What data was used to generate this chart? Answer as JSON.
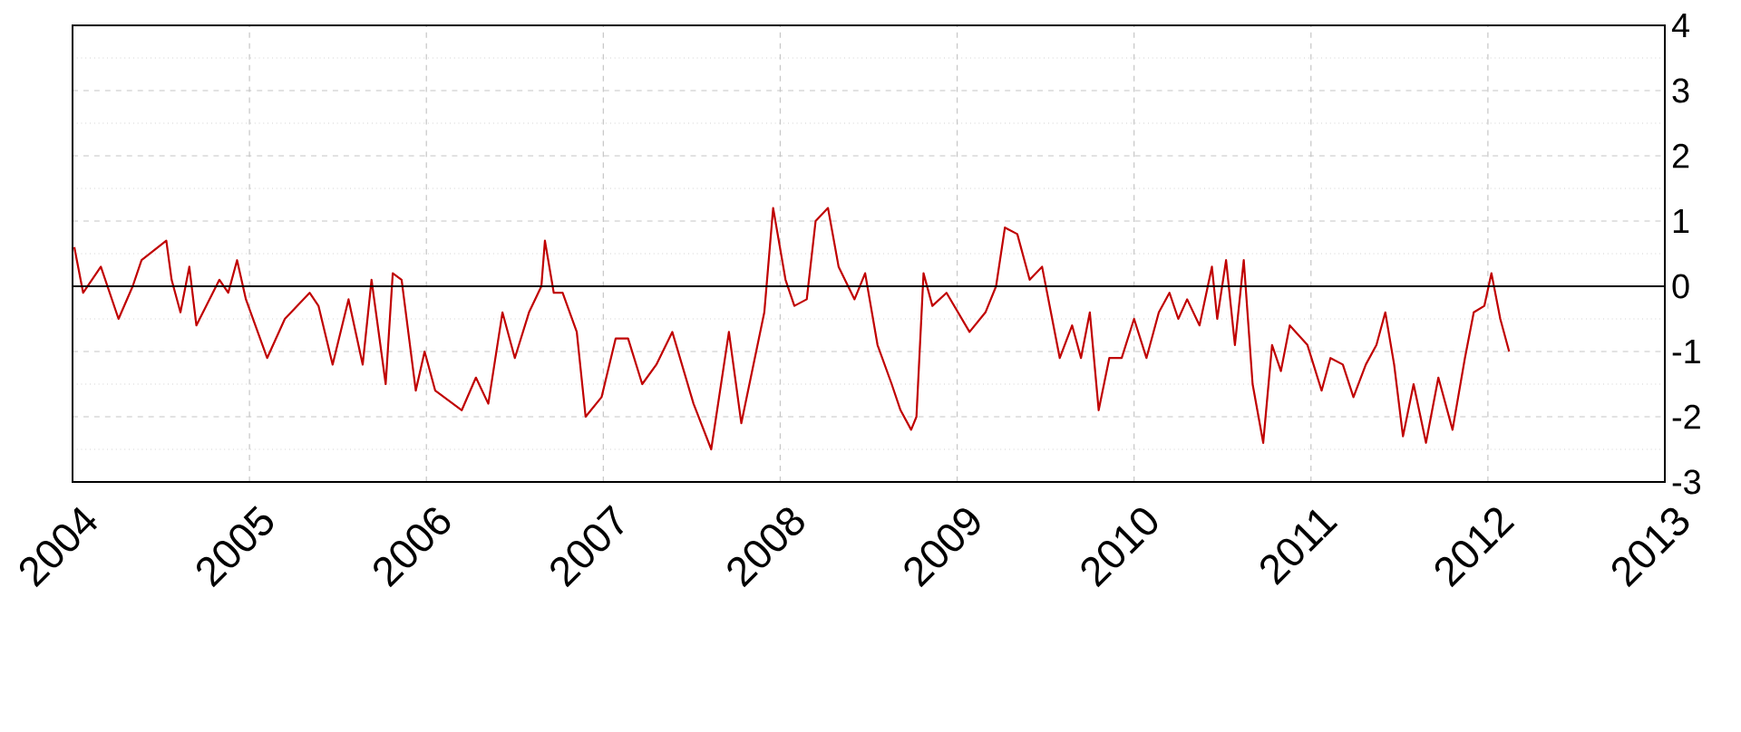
{
  "chart_data": {
    "type": "line",
    "x": [
      2004.01,
      2004.06,
      2004.16,
      2004.26,
      2004.34,
      2004.39,
      2004.53,
      2004.56,
      2004.61,
      2004.66,
      2004.7,
      2004.83,
      2004.88,
      2004.93,
      2004.98,
      2005.1,
      2005.2,
      2005.27,
      2005.34,
      2005.39,
      2005.47,
      2005.56,
      2005.64,
      2005.69,
      2005.77,
      2005.81,
      2005.86,
      2005.94,
      2005.99,
      2006.05,
      2006.2,
      2006.28,
      2006.35,
      2006.43,
      2006.5,
      2006.58,
      2006.65,
      2006.67,
      2006.72,
      2006.77,
      2006.85,
      2006.9,
      2006.99,
      2007.07,
      2007.14,
      2007.22,
      2007.3,
      2007.39,
      2007.51,
      2007.61,
      2007.71,
      2007.78,
      2007.91,
      2007.96,
      2008.03,
      2008.08,
      2008.15,
      2008.2,
      2008.27,
      2008.33,
      2008.42,
      2008.48,
      2008.55,
      2008.63,
      2008.68,
      2008.74,
      2008.77,
      2008.81,
      2008.86,
      2008.94,
      2009.07,
      2009.16,
      2009.22,
      2009.27,
      2009.34,
      2009.41,
      2009.48,
      2009.53,
      2009.58,
      2009.65,
      2009.7,
      2009.75,
      2009.8,
      2009.86,
      2009.93,
      2010.0,
      2010.07,
      2010.14,
      2010.2,
      2010.25,
      2010.3,
      2010.37,
      2010.44,
      2010.47,
      2010.52,
      2010.57,
      2010.62,
      2010.67,
      2010.73,
      2010.78,
      2010.83,
      2010.88,
      2010.98,
      2011.06,
      2011.11,
      2011.18,
      2011.24,
      2011.31,
      2011.37,
      2011.42,
      2011.47,
      2011.52,
      2011.58,
      2011.65,
      2011.72,
      2011.8,
      2011.87,
      2011.92,
      2011.98,
      2012.02,
      2012.07,
      2012.12
    ],
    "series": [
      {
        "color": "#c00000",
        "values": [
          0.6,
          -0.1,
          0.3,
          -0.5,
          0.0,
          0.4,
          0.7,
          0.1,
          -0.4,
          0.3,
          -0.6,
          0.1,
          -0.1,
          0.4,
          -0.2,
          -1.1,
          -0.5,
          -0.3,
          -0.1,
          -0.3,
          -1.2,
          -0.2,
          -1.2,
          0.1,
          -1.5,
          0.2,
          0.1,
          -1.6,
          -1.0,
          -1.6,
          -1.9,
          -1.4,
          -1.8,
          -0.4,
          -1.1,
          -0.4,
          0.0,
          0.7,
          -0.1,
          -0.1,
          -0.7,
          -2.0,
          -1.7,
          -0.8,
          -0.8,
          -1.5,
          -1.2,
          -0.7,
          -1.8,
          -2.5,
          -0.7,
          -2.1,
          -0.4,
          1.2,
          0.1,
          -0.3,
          -0.2,
          1.0,
          1.2,
          0.3,
          -0.2,
          0.2,
          -0.9,
          -1.5,
          -1.9,
          -2.2,
          -2.0,
          0.2,
          -0.3,
          -0.1,
          -0.7,
          -0.4,
          0.0,
          0.9,
          0.8,
          0.1,
          0.3,
          -0.4,
          -1.1,
          -0.6,
          -1.1,
          -0.4,
          -1.9,
          -1.1,
          -1.1,
          -0.5,
          -1.1,
          -0.4,
          -0.1,
          -0.5,
          -0.2,
          -0.6,
          0.3,
          -0.5,
          0.4,
          -0.9,
          0.4,
          -1.5,
          -2.4,
          -0.9,
          -1.3,
          -0.6,
          -0.9,
          -1.6,
          -1.1,
          -1.2,
          -1.7,
          -1.2,
          -0.9,
          -0.4,
          -1.2,
          -2.3,
          -1.5,
          -2.4,
          -1.4,
          -2.2,
          -1.1,
          -0.4,
          -0.3,
          0.2,
          -0.5,
          -1.0
        ]
      }
    ],
    "xlim": [
      2004,
      2013
    ],
    "xticks": [
      2004,
      2005,
      2006,
      2007,
      2008,
      2009,
      2010,
      2011,
      2012,
      2013
    ],
    "ylim": [
      -3,
      4
    ],
    "yticks": [
      -3,
      -2,
      -1,
      0,
      1,
      2,
      3,
      4
    ],
    "grid": true,
    "line_style": "solid",
    "marker": "none",
    "ref_lines": [
      {
        "axis": "y",
        "value": 0,
        "color": "#000000"
      }
    ]
  }
}
